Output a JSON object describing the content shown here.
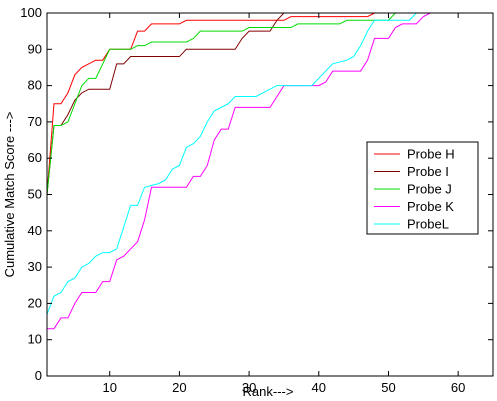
{
  "chart_data": {
    "type": "line",
    "title": "",
    "xlabel": "Rank--->",
    "ylabel": "Cumulative Match Score --->",
    "xlim": [
      1,
      65
    ],
    "ylim": [
      0,
      100
    ],
    "xticks": [
      10,
      20,
      30,
      40,
      50,
      60
    ],
    "yticks": [
      0,
      10,
      20,
      30,
      40,
      50,
      60,
      70,
      80,
      90,
      100
    ],
    "grid": false,
    "legend_position": "right",
    "series": [
      {
        "name": "Probe H",
        "color": "#ff0000",
        "points": [
          [
            1,
            50
          ],
          [
            2,
            75
          ],
          [
            3,
            75
          ],
          [
            4,
            78
          ],
          [
            5,
            83
          ],
          [
            6,
            85
          ],
          [
            7,
            86
          ],
          [
            8,
            87
          ],
          [
            9,
            87
          ],
          [
            10,
            90
          ],
          [
            12,
            90
          ],
          [
            13,
            90
          ],
          [
            14,
            95
          ],
          [
            15,
            95
          ],
          [
            16,
            97
          ],
          [
            20,
            97
          ],
          [
            21,
            98
          ],
          [
            35,
            98
          ],
          [
            36,
            99
          ],
          [
            47,
            99
          ],
          [
            48,
            100
          ],
          [
            65,
            100
          ]
        ]
      },
      {
        "name": "Probe I",
        "color": "#800000",
        "points": [
          [
            1,
            50
          ],
          [
            2,
            69
          ],
          [
            3,
            69
          ],
          [
            4,
            72
          ],
          [
            5,
            76
          ],
          [
            6,
            78
          ],
          [
            7,
            79
          ],
          [
            9,
            79
          ],
          [
            10,
            79
          ],
          [
            11,
            86
          ],
          [
            12,
            86
          ],
          [
            13,
            88
          ],
          [
            14,
            88
          ],
          [
            20,
            88
          ],
          [
            21,
            90
          ],
          [
            28,
            90
          ],
          [
            29,
            93
          ],
          [
            30,
            95
          ],
          [
            33,
            95
          ],
          [
            34,
            98
          ],
          [
            35,
            100
          ],
          [
            65,
            100
          ]
        ]
      },
      {
        "name": "Probe J",
        "color": "#00dd00",
        "points": [
          [
            1,
            50
          ],
          [
            2,
            69
          ],
          [
            3,
            69
          ],
          [
            4,
            70
          ],
          [
            5,
            75
          ],
          [
            6,
            80
          ],
          [
            7,
            82
          ],
          [
            8,
            82
          ],
          [
            9,
            86
          ],
          [
            10,
            90
          ],
          [
            13,
            90
          ],
          [
            14,
            91
          ],
          [
            15,
            91
          ],
          [
            16,
            92
          ],
          [
            21,
            92
          ],
          [
            22,
            93
          ],
          [
            23,
            95
          ],
          [
            29,
            95
          ],
          [
            30,
            96
          ],
          [
            36,
            96
          ],
          [
            37,
            97
          ],
          [
            43,
            97
          ],
          [
            44,
            98
          ],
          [
            50,
            98
          ],
          [
            51,
            100
          ],
          [
            65,
            100
          ]
        ]
      },
      {
        "name": "Probe K",
        "color": "#ff00ff",
        "points": [
          [
            1,
            13
          ],
          [
            2,
            13
          ],
          [
            3,
            16
          ],
          [
            4,
            16
          ],
          [
            5,
            20
          ],
          [
            6,
            23
          ],
          [
            7,
            23
          ],
          [
            8,
            23
          ],
          [
            9,
            26
          ],
          [
            10,
            26
          ],
          [
            11,
            32
          ],
          [
            12,
            33
          ],
          [
            13,
            35
          ],
          [
            14,
            37
          ],
          [
            15,
            43
          ],
          [
            16,
            52
          ],
          [
            17,
            52
          ],
          [
            20,
            52
          ],
          [
            21,
            52
          ],
          [
            22,
            55
          ],
          [
            23,
            55
          ],
          [
            24,
            58
          ],
          [
            25,
            65
          ],
          [
            26,
            68
          ],
          [
            27,
            68
          ],
          [
            28,
            74
          ],
          [
            33,
            74
          ],
          [
            34,
            77
          ],
          [
            35,
            80
          ],
          [
            40,
            80
          ],
          [
            41,
            81
          ],
          [
            42,
            84
          ],
          [
            46,
            84
          ],
          [
            47,
            87
          ],
          [
            48,
            93
          ],
          [
            50,
            93
          ],
          [
            51,
            96
          ],
          [
            52,
            97
          ],
          [
            54,
            97
          ],
          [
            55,
            99
          ],
          [
            56,
            100
          ],
          [
            65,
            100
          ]
        ]
      },
      {
        "name": "ProbeL",
        "color": "#00ffff",
        "points": [
          [
            1,
            17
          ],
          [
            2,
            22
          ],
          [
            3,
            23
          ],
          [
            4,
            26
          ],
          [
            5,
            27
          ],
          [
            6,
            30
          ],
          [
            7,
            31
          ],
          [
            8,
            33
          ],
          [
            9,
            34
          ],
          [
            10,
            34
          ],
          [
            11,
            35
          ],
          [
            12,
            41
          ],
          [
            13,
            47
          ],
          [
            14,
            47
          ],
          [
            15,
            52
          ],
          [
            17,
            53
          ],
          [
            18,
            54
          ],
          [
            19,
            57
          ],
          [
            20,
            58
          ],
          [
            21,
            63
          ],
          [
            22,
            64
          ],
          [
            23,
            66
          ],
          [
            24,
            70
          ],
          [
            25,
            73
          ],
          [
            26,
            74
          ],
          [
            27,
            75
          ],
          [
            28,
            77
          ],
          [
            31,
            77
          ],
          [
            32,
            78
          ],
          [
            34,
            80
          ],
          [
            39,
            80
          ],
          [
            40,
            82
          ],
          [
            41,
            84
          ],
          [
            42,
            86
          ],
          [
            44,
            87
          ],
          [
            45,
            88
          ],
          [
            46,
            91
          ],
          [
            47,
            95
          ],
          [
            48,
            98
          ],
          [
            49,
            98
          ],
          [
            53,
            98
          ],
          [
            54,
            100
          ],
          [
            65,
            100
          ]
        ]
      }
    ]
  }
}
